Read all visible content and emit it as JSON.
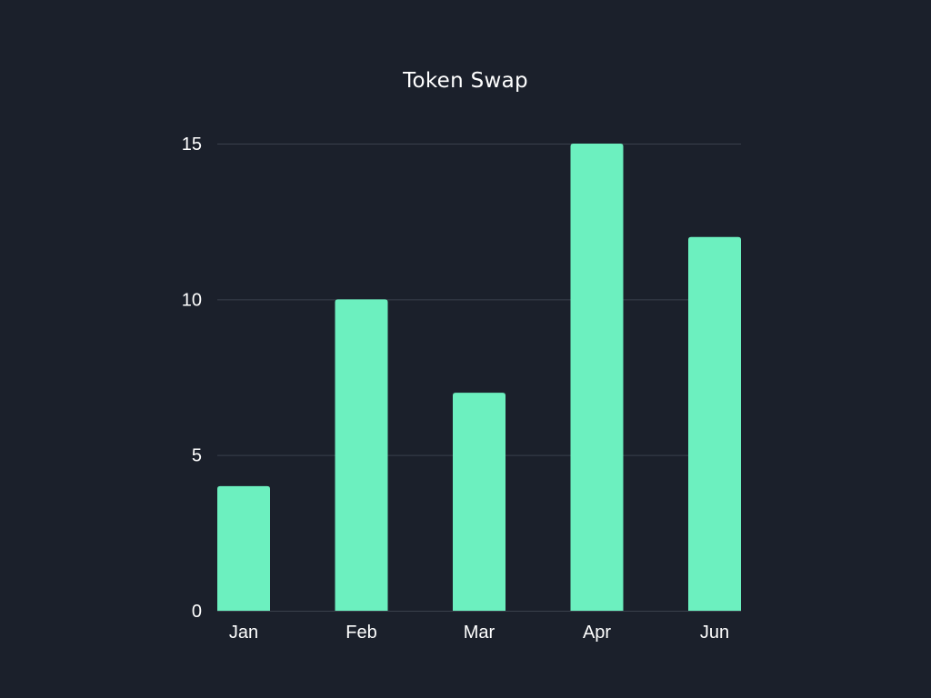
{
  "chart_data": {
    "type": "bar",
    "title": "Token Swap",
    "categories": [
      "Jan",
      "Feb",
      "Mar",
      "Apr",
      "Jun"
    ],
    "values": [
      4,
      10,
      7,
      15,
      12
    ],
    "ylim": [
      0,
      15
    ],
    "yticks": [
      "0",
      "5",
      "10",
      "15"
    ],
    "xlabel": "",
    "ylabel": "",
    "grid": true,
    "colors": {
      "bar": "#6cf0bf",
      "background": "#1b202b",
      "grid": "#3a404c",
      "text": "#ffffff"
    }
  }
}
